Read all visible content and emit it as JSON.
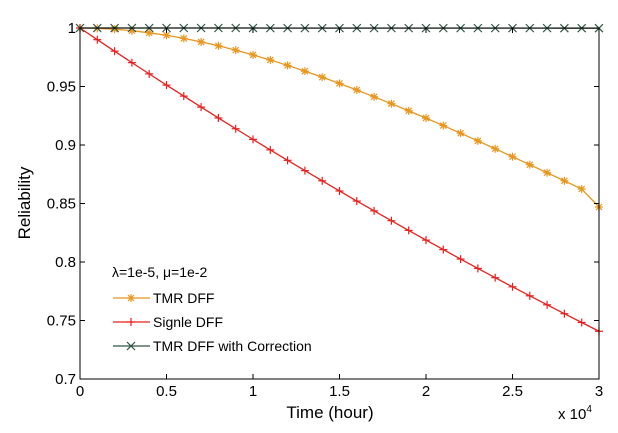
{
  "chart_data": {
    "type": "line",
    "xlabel": "Time (hour)",
    "ylabel": "Reliability",
    "x_multiplier": "x 10",
    "x_multiplier_exp": "4",
    "xlim": [
      0,
      3
    ],
    "ylim": [
      0.7,
      1.0
    ],
    "xticks": [
      "0",
      "0.5",
      "1",
      "1.5",
      "2",
      "2.5",
      "3"
    ],
    "yticks": [
      "0.7",
      "0.75",
      "0.8",
      "0.85",
      "0.9",
      "0.95",
      "1"
    ],
    "grid": false,
    "legend_position": "lower-left",
    "annotation": "λ=1e-5, μ=1e-2",
    "x": [
      0,
      0.1,
      0.2,
      0.3,
      0.4,
      0.5,
      0.6,
      0.7,
      0.8,
      0.9,
      1.0,
      1.1,
      1.2,
      1.3,
      1.4,
      1.5,
      1.6,
      1.7,
      1.8,
      1.9,
      2.0,
      2.1,
      2.2,
      2.3,
      2.4,
      2.5,
      2.6,
      2.7,
      2.8,
      2.9,
      3.0
    ],
    "series": [
      {
        "name": "TMR DFF",
        "color": "#E8961E",
        "marker": "asterisk",
        "values": [
          1.0,
          0.9997,
          0.999,
          0.9977,
          0.9959,
          0.9938,
          0.9911,
          0.9881,
          0.9848,
          0.9811,
          0.977,
          0.9727,
          0.968,
          0.9631,
          0.958,
          0.9526,
          0.947,
          0.9412,
          0.9353,
          0.9292,
          0.923,
          0.9166,
          0.9101,
          0.9035,
          0.8968,
          0.89,
          0.8832,
          0.8763,
          0.8694,
          0.8624,
          0.847
        ]
      },
      {
        "name": "Signle DFF",
        "color": "#E8201E",
        "marker": "plus",
        "values": [
          1.0,
          0.99,
          0.9802,
          0.9704,
          0.9608,
          0.9512,
          0.9418,
          0.9324,
          0.9231,
          0.9139,
          0.9048,
          0.8958,
          0.8869,
          0.8781,
          0.8694,
          0.8607,
          0.8521,
          0.8437,
          0.8353,
          0.827,
          0.8187,
          0.8106,
          0.8025,
          0.7945,
          0.7866,
          0.7788,
          0.7711,
          0.7634,
          0.7558,
          0.7483,
          0.7408
        ]
      },
      {
        "name": "TMR DFF with Correction",
        "color": "#2F5544",
        "marker": "x",
        "values": [
          1.0,
          1.0,
          1.0,
          1.0,
          1.0,
          1.0,
          1.0,
          1.0,
          1.0,
          1.0,
          1.0,
          0.9999,
          0.9999,
          0.9999,
          0.9999,
          0.9999,
          0.9999,
          0.9999,
          0.9999,
          0.9999,
          0.9999,
          0.9999,
          0.9999,
          0.9999,
          0.9999,
          0.9999,
          0.9999,
          0.9999,
          0.9998,
          0.9998,
          0.9998
        ]
      }
    ]
  }
}
